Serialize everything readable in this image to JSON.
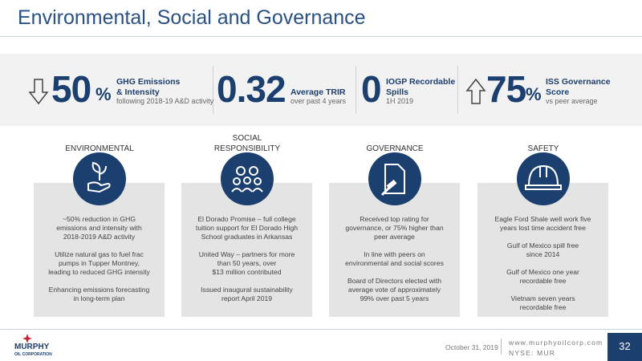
{
  "title": "Environmental, Social and Governance",
  "kpis": [
    {
      "value": 50,
      "unit": "%",
      "label": [
        "GHG Emissions",
        "& Intensity"
      ],
      "note": "following 2018-19 A&D activity"
    },
    {
      "value": 0.32,
      "label": [
        "Average TRIR"
      ],
      "note": "over past 4 years"
    },
    {
      "value": 0,
      "label": [
        "IOGP Recordable",
        "Spills"
      ],
      "note": "1H 2019"
    },
    {
      "value": 75,
      "unit": "%",
      "label": [
        "ISS Governance",
        "Score"
      ],
      "note": "vs peer average"
    }
  ],
  "columns": [
    {
      "heading": [
        "ENVIRONMENTAL"
      ],
      "items": [
        [
          "~50% reduction in GHG",
          "emissions and intensity with",
          "2018-2019 A&D activity"
        ],
        [
          "Utilize natural gas to fuel frac",
          "pumps in Tupper Montney,",
          "leading to reduced GHG intensity"
        ],
        [
          "Enhancing emissions forecasting",
          "in long-term plan"
        ]
      ]
    },
    {
      "heading": [
        "SOCIAL",
        "RESPONSIBILITY"
      ],
      "items": [
        [
          "El Dorado Promise – full college",
          "tuition support for El Dorado High",
          "School graduates in Arkansas"
        ],
        [
          "United Way – partners for more",
          "than 50 years, over",
          "$13 million contributed"
        ],
        [
          "Issued inaugural sustainability",
          "report April 2019"
        ]
      ]
    },
    {
      "heading": [
        "GOVERNANCE"
      ],
      "items": [
        [
          "Received top rating for",
          "governance, or 75% higher than",
          "peer average"
        ],
        [
          "In line with peers on",
          "environmental and social scores"
        ],
        [
          "Board of Directors elected with",
          "average vote of approximately",
          "99% over past 5 years"
        ]
      ]
    },
    {
      "heading": [
        "SAFETY"
      ],
      "items": [
        [
          "Eagle Ford Shale well work five",
          "years lost time accident free"
        ],
        [
          "Gulf of Mexico spill free",
          "since 2014"
        ],
        [
          "Gulf of Mexico one year",
          "recordable free"
        ],
        [
          "Vietnam seven years",
          "recordable free"
        ]
      ]
    }
  ],
  "footer": {
    "logo": [
      "MURPHY",
      "OIL CORPORATION"
    ],
    "date": "October 31, 2019",
    "url": "www.murphyoilcorp.com",
    "ticker": "NYSE: MUR",
    "page": 32
  }
}
